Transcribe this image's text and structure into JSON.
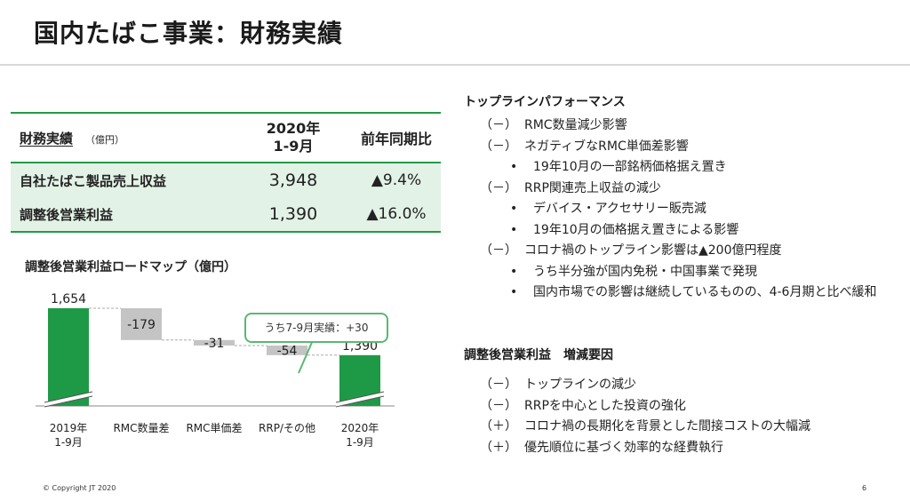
{
  "title": "国内たばこ事業：財務実績",
  "table": {
    "header_label": "財務実績",
    "unit": "（億円）",
    "col_period": "2020年\n1-9月",
    "col_period_l1": "2020年",
    "col_period_l2": "1-9月",
    "col_yoy": "前年同期比",
    "rows": [
      {
        "label": "自社たばこ製品売上収益",
        "value": "3,948",
        "yoy": "▲9.4%"
      },
      {
        "label": "調整後営業利益",
        "value": "1,390",
        "yoy": "▲16.0%"
      }
    ]
  },
  "chart_title": "調整後営業利益ロードマップ（億円）",
  "chart_data": {
    "type": "bar",
    "subtype": "waterfall",
    "categories": [
      "2019年\n1-9月",
      "RMC数量差",
      "RMC単価差",
      "RRP/その他",
      "2020年\n1-9月"
    ],
    "category_lines": [
      [
        "2019年",
        "1-9月"
      ],
      [
        "RMC数量差"
      ],
      [
        "RMC単価差"
      ],
      [
        "RRP/その他"
      ],
      [
        "2020年",
        "1-9月"
      ]
    ],
    "values": [
      1654,
      -179,
      -31,
      -54,
      1390
    ],
    "labels": [
      "1,654",
      "-179",
      "-31",
      "-54",
      "1,390"
    ],
    "kinds": [
      "total",
      "delta",
      "delta",
      "delta",
      "total"
    ],
    "axis_break": true,
    "title": "調整後営業利益ロードマップ（億円）",
    "annotation": "うち7-9月実績：+30",
    "colors": {
      "total": "#1e9a46",
      "delta": "#c4c4c4"
    }
  },
  "right": {
    "topline_heading": "トップラインパフォーマンス",
    "topline_items": [
      {
        "level": 1,
        "sign": "（－）",
        "text": "RMC数量減少影響"
      },
      {
        "level": 1,
        "sign": "（－）",
        "text": "ネガティブなRMC単価差影響"
      },
      {
        "level": 2,
        "bullet": "•",
        "text": "19年10月の一部銘柄価格据え置き"
      },
      {
        "level": 1,
        "sign": "（－）",
        "text": "RRP関連売上収益の減少"
      },
      {
        "level": 2,
        "bullet": "•",
        "text": "デバイス・アクセサリー販売減"
      },
      {
        "level": 2,
        "bullet": "•",
        "text": "19年10月の価格据え置きによる影響"
      },
      {
        "level": 1,
        "sign": "（－）",
        "text": "コロナ禍のトップライン影響は▲200億円程度"
      },
      {
        "level": 2,
        "bullet": "•",
        "text": "うち半分強が国内免税・中国事業で発現"
      },
      {
        "level": 2,
        "bullet": "•",
        "text": "国内市場での影響は継続しているものの、4-6月期と比べ緩和"
      }
    ],
    "profit_heading": "調整後営業利益　増減要因",
    "profit_items": [
      {
        "sign": "（－）",
        "text": "トップラインの減少"
      },
      {
        "sign": "（－）",
        "text": "RRPを中心とした投資の強化"
      },
      {
        "sign": "（＋）",
        "text": "コロナ禍の長期化を背景とした間接コストの大幅減"
      },
      {
        "sign": "（＋）",
        "text": "優先順位に基づく効率的な経費執行"
      }
    ]
  },
  "footer": {
    "copyright": "© Copyright JT 2020",
    "page": "6"
  }
}
